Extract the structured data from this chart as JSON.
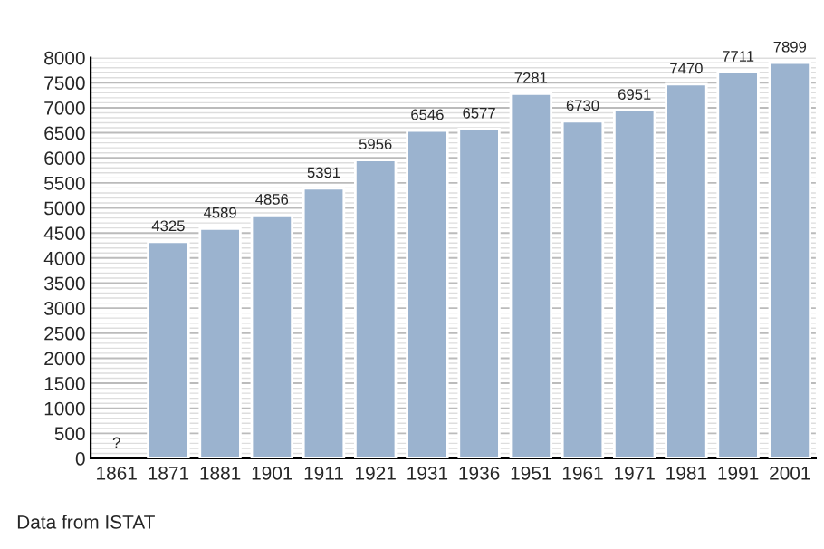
{
  "chart_data": {
    "type": "bar",
    "categories": [
      "1861",
      "1871",
      "1881",
      "1901",
      "1911",
      "1921",
      "1931",
      "1936",
      "1951",
      "1961",
      "1971",
      "1981",
      "1991",
      "2001"
    ],
    "values": [
      null,
      4325,
      4589,
      4856,
      5391,
      5956,
      6546,
      6577,
      7281,
      6730,
      6951,
      7470,
      7711,
      7899
    ],
    "value_labels": [
      "?",
      "4325",
      "4589",
      "4856",
      "5391",
      "5956",
      "6546",
      "6577",
      "7281",
      "6730",
      "6951",
      "7470",
      "7711",
      "7899"
    ],
    "color": "#9bb3cf",
    "ylim": [
      0,
      8000
    ],
    "yticks": [
      0,
      500,
      1000,
      1500,
      2000,
      2500,
      3000,
      3500,
      4000,
      4500,
      5000,
      5500,
      6000,
      6500,
      7000,
      7500,
      8000
    ],
    "grid": "y",
    "annotations": [
      "Data from ISTAT"
    ]
  }
}
